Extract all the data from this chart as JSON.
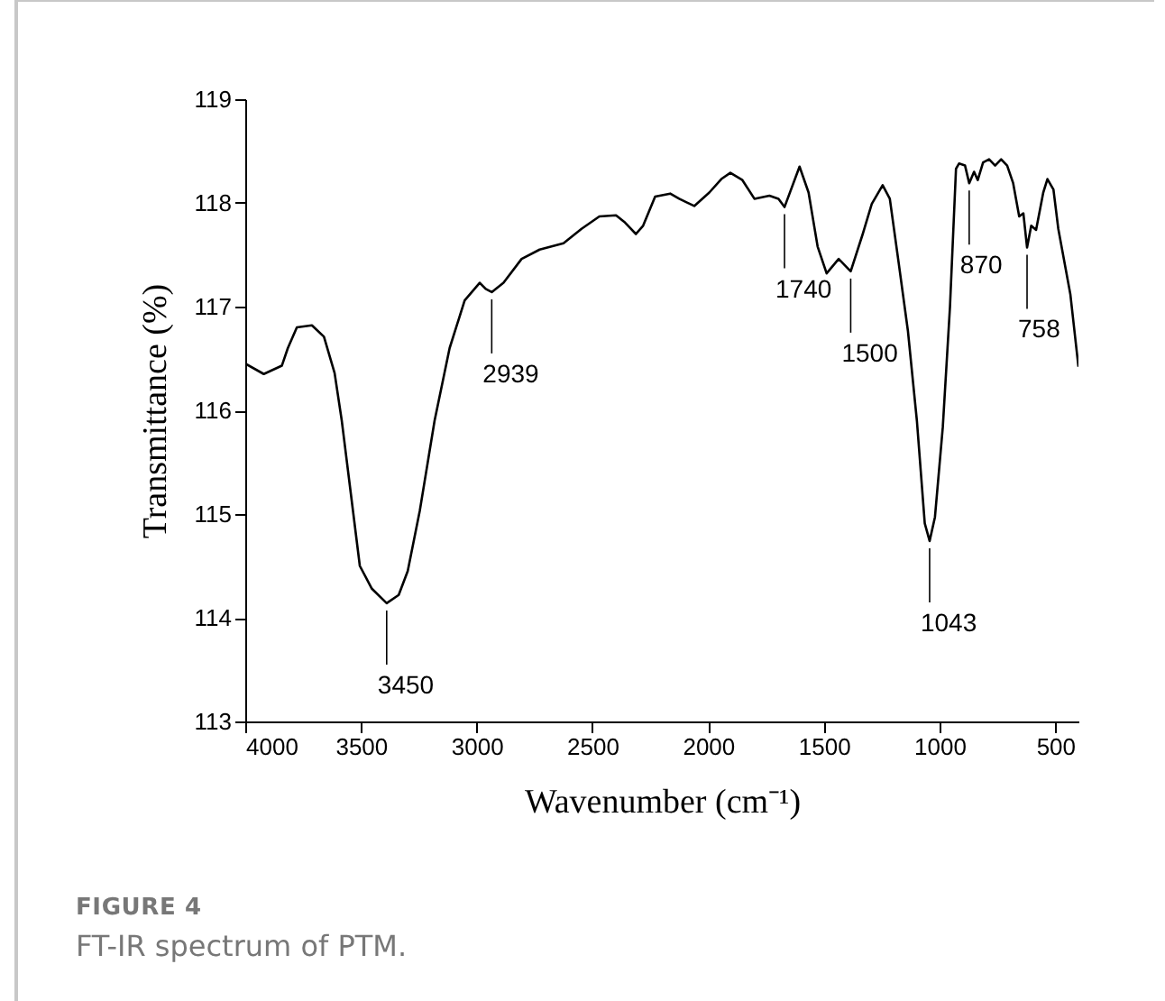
{
  "chart_data": {
    "type": "line",
    "xlabel": "Wavenumber (cm⁻¹)",
    "ylabel": "Transmittance (%)",
    "x": [
      4000,
      3920,
      3842,
      3816,
      3777,
      3712,
      3660,
      3614,
      3583,
      3544,
      3505,
      3453,
      3389,
      3337,
      3298,
      3246,
      3182,
      3117,
      3052,
      2987,
      2961,
      2935,
      2884,
      2806,
      2728,
      2625,
      2547,
      2470,
      2398,
      2359,
      2312,
      2281,
      2229,
      2164,
      2125,
      2060,
      1995,
      1943,
      1904,
      1852,
      1800,
      1735,
      1696,
      1670,
      1605,
      1566,
      1527,
      1488,
      1436,
      1384,
      1332,
      1293,
      1246,
      1215,
      1176,
      1137,
      1098,
      1064,
      1043,
      1020,
      986,
      955,
      929,
      916,
      890,
      872,
      851,
      835,
      812,
      786,
      760,
      734,
      708,
      682,
      656,
      638,
      622,
      604,
      583,
      552,
      534,
      508,
      487,
      435,
      400
    ],
    "series": [
      {
        "color": "#000000",
        "values": [
          116.45,
          116.35,
          116.43,
          116.6,
          116.8,
          116.82,
          116.71,
          116.36,
          115.9,
          115.2,
          114.5,
          114.28,
          114.14,
          114.22,
          114.45,
          115.03,
          115.9,
          116.6,
          117.06,
          117.23,
          117.17,
          117.14,
          117.23,
          117.46,
          117.55,
          117.61,
          117.75,
          117.87,
          117.88,
          117.81,
          117.7,
          117.78,
          118.06,
          118.09,
          118.04,
          117.97,
          118.1,
          118.23,
          118.29,
          118.22,
          118.04,
          118.07,
          118.04,
          117.96,
          118.35,
          118.1,
          117.58,
          117.32,
          117.46,
          117.34,
          117.7,
          117.99,
          118.17,
          118.04,
          117.41,
          116.77,
          115.9,
          114.91,
          114.74,
          114.97,
          115.84,
          117.0,
          118.33,
          118.38,
          118.36,
          118.19,
          118.3,
          118.22,
          118.39,
          118.42,
          118.36,
          118.42,
          118.36,
          118.19,
          117.87,
          117.9,
          117.57,
          117.78,
          117.74,
          118.1,
          118.23,
          118.13,
          117.75,
          117.12,
          116.42
        ]
      }
    ],
    "xlim": [
      4000,
      400
    ],
    "xticks": [
      4000,
      3500,
      3000,
      2500,
      2000,
      1500,
      1000,
      500
    ],
    "ylim": [
      113,
      119
    ],
    "yticks": [
      113,
      114,
      115,
      116,
      117,
      118,
      119
    ],
    "grid": false,
    "marker": "none",
    "line_style": "solid",
    "annotations": [
      {
        "text": "3450",
        "x": 3389,
        "y": 114.14
      },
      {
        "text": "2939",
        "x": 2935,
        "y": 117.14
      },
      {
        "text": "1740",
        "x": 1670,
        "y": 117.96
      },
      {
        "text": "1500",
        "x": 1384,
        "y": 117.34
      },
      {
        "text": "1043",
        "x": 1043,
        "y": 114.74
      },
      {
        "text": "870",
        "x": 872,
        "y": 118.19
      },
      {
        "text": "758",
        "x": 622,
        "y": 117.57
      },
      "FIGURE 4",
      "FT-IR spectrum of PTM."
    ]
  }
}
